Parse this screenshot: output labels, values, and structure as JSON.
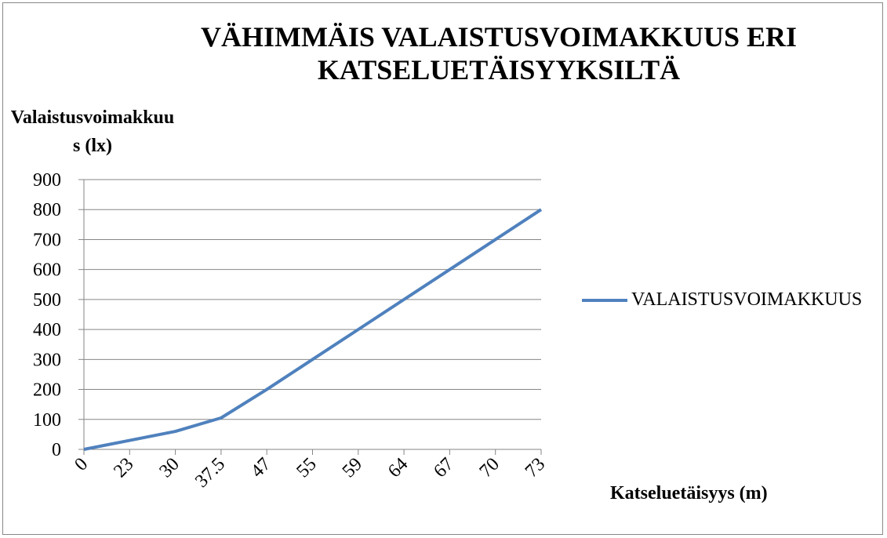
{
  "chart_data": {
    "type": "line",
    "title": "VÄHIMMÄIS VALAISTUSVOIMAKKUUS ERI KATSELUETÄISYYKSILTÄ",
    "y_label": "Valaistusvoimakkuus (lx)",
    "x_label": "Katseluetäisyys (m)",
    "categories": [
      "0",
      "23",
      "30",
      "37.5",
      "47",
      "55",
      "59",
      "64",
      "67",
      "70",
      "73"
    ],
    "series": [
      {
        "name": "VALAISTUSVOIMAKKUUS",
        "color": "#4f81bd",
        "values": [
          0,
          30,
          60,
          105,
          200,
          300,
          400,
          500,
          600,
          700,
          800
        ]
      }
    ],
    "ylim": [
      0,
      900
    ],
    "yticks": [
      0,
      100,
      200,
      300,
      400,
      500,
      600,
      700,
      800,
      900
    ],
    "grid": true,
    "legend": "right"
  }
}
